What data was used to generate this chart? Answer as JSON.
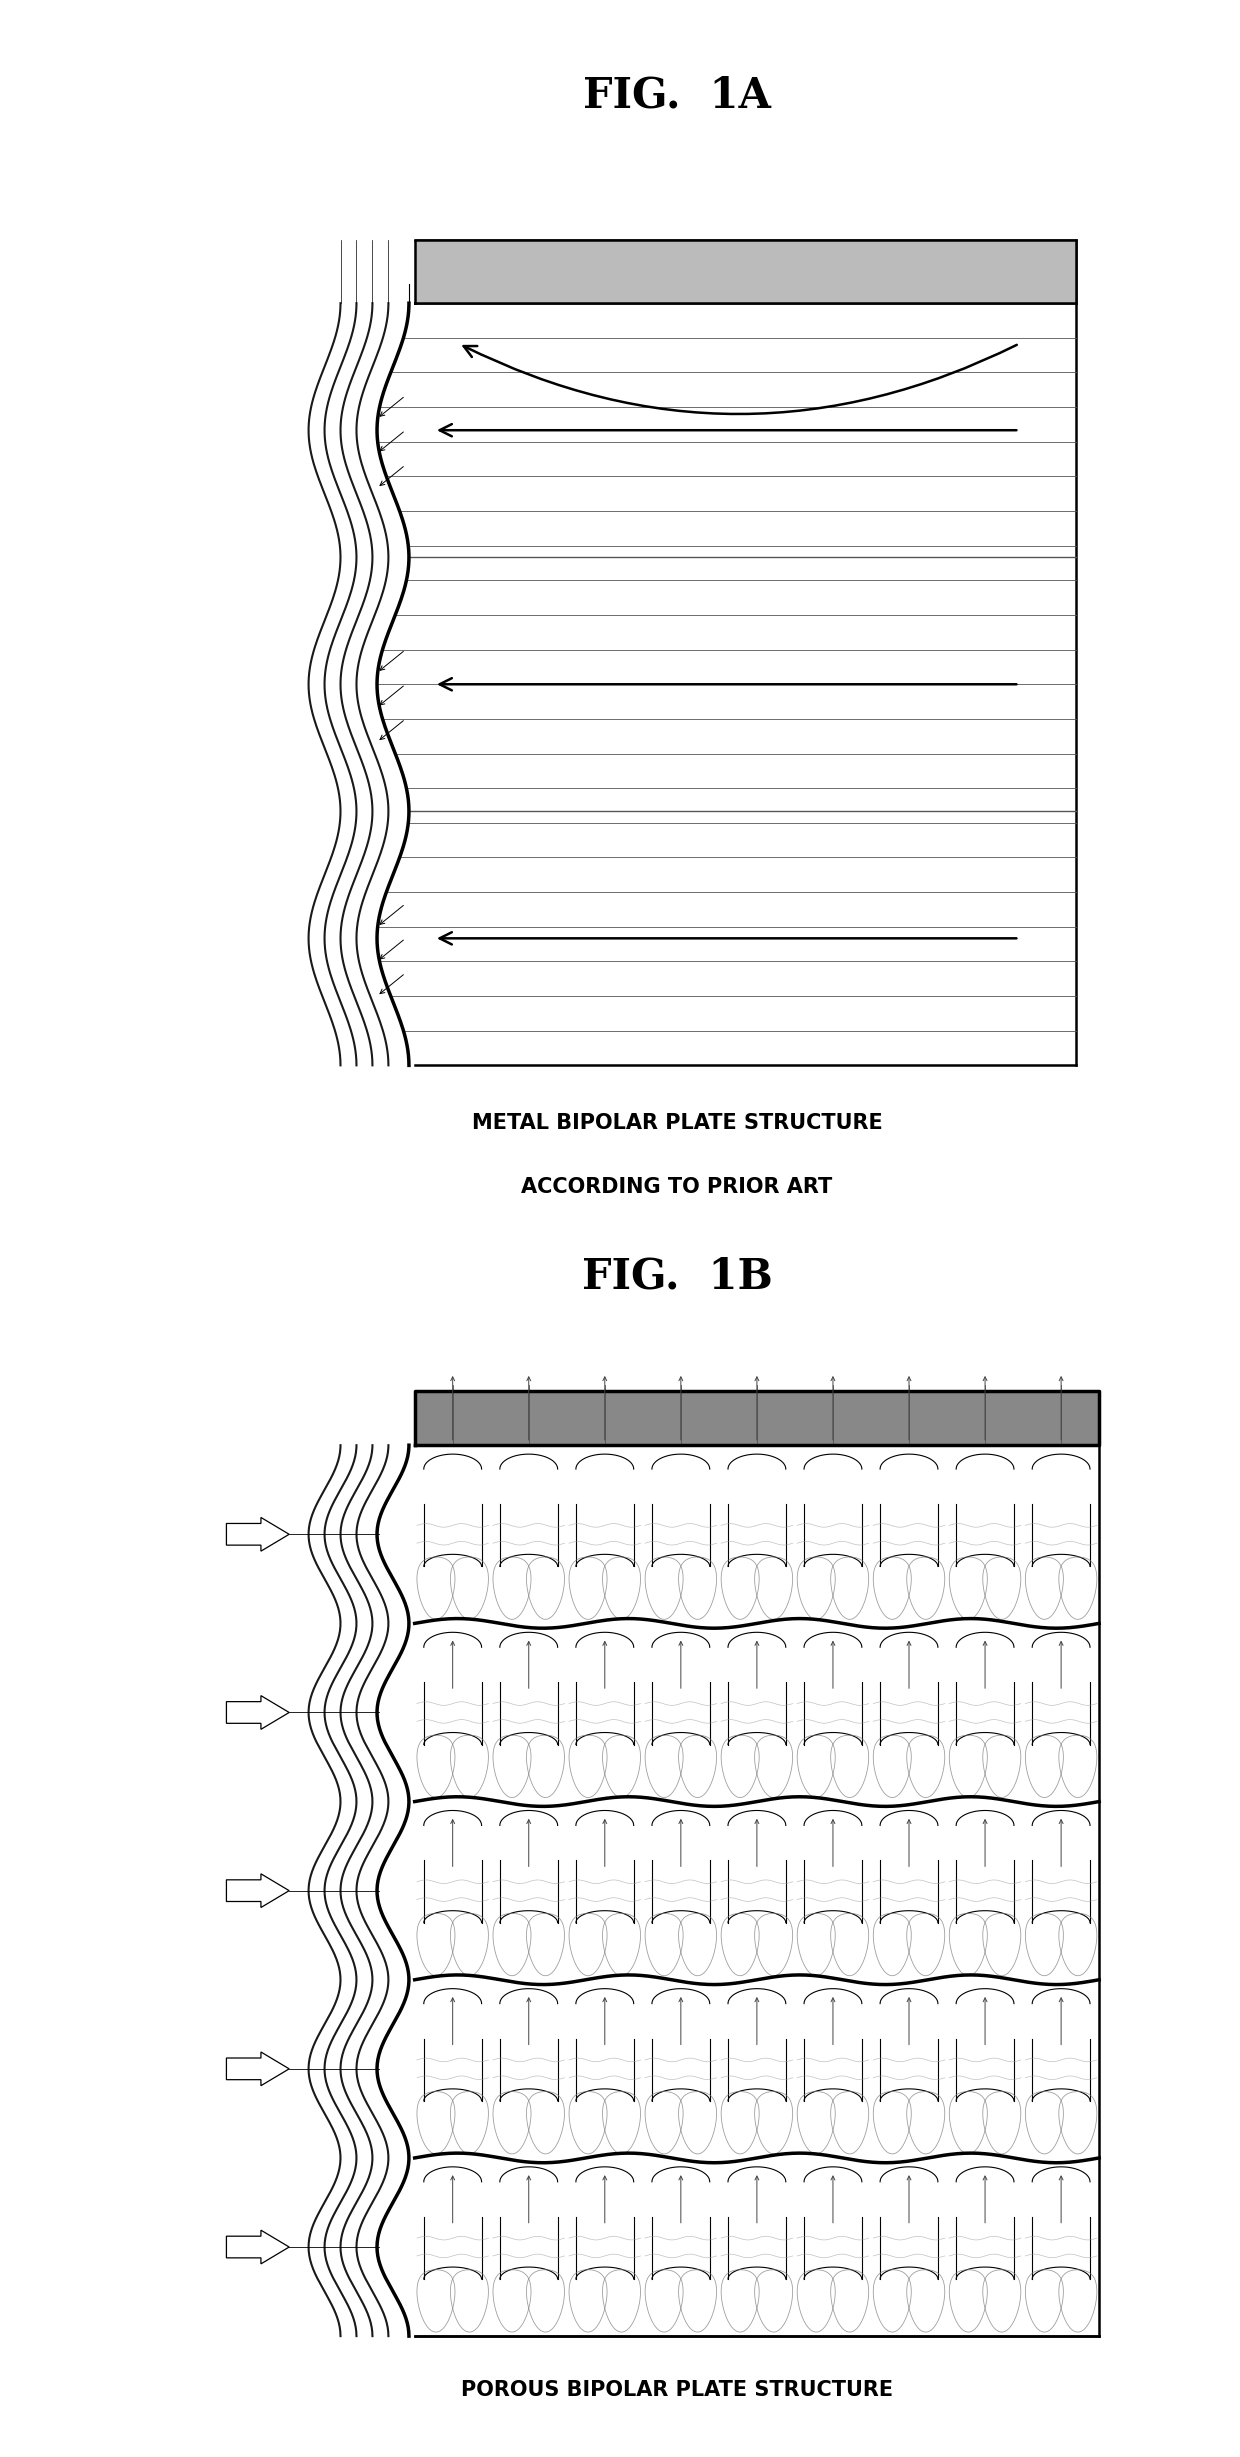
{
  "bg_color": "#ffffff",
  "fig_width": 12.4,
  "fig_height": 24.57,
  "title_1a": "FIG.  1A",
  "title_1b": "FIG.  1B",
  "caption_1a_line1": "METAL BIPOLAR PLATE STRUCTURE",
  "caption_1a_line2": "ACCORDING TO PRIOR ART",
  "caption_1b": "POROUS BIPOLAR PLATE STRUCTURE",
  "lc": "#000000",
  "gray_top": "#888888",
  "lw_main": 1.8,
  "lw_thick": 2.5,
  "lw_thin": 0.8,
  "lw_hair": 0.5
}
